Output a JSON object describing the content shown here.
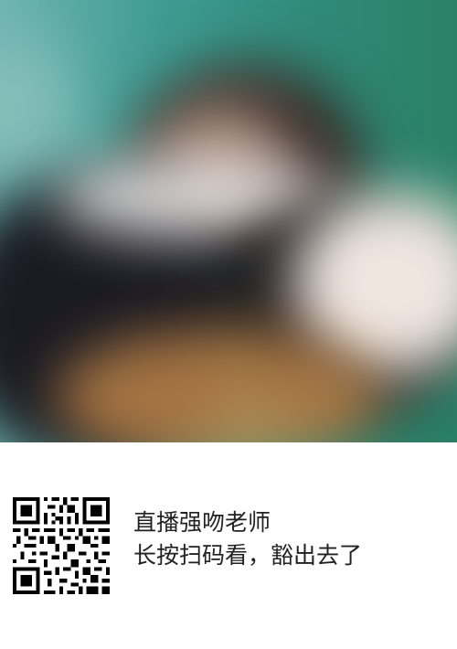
{
  "photo": {
    "description": ""
  },
  "qr": {
    "icon": "qr-code-icon"
  },
  "caption": {
    "line1": "直播强吻老师",
    "line2": "长按扫码看，豁出去了"
  },
  "colors": {
    "background": "#ffffff",
    "text": "#222222"
  }
}
